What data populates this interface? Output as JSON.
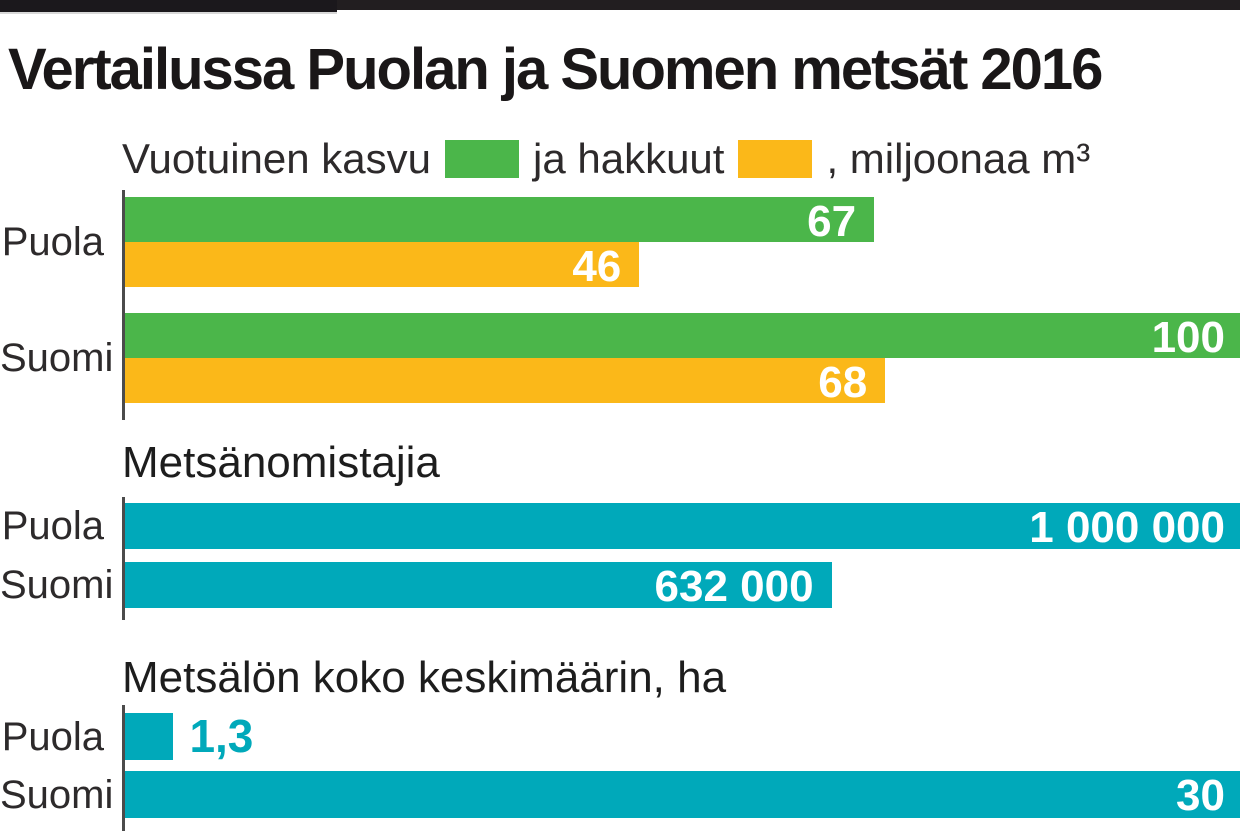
{
  "header": {
    "title": "Vertailussa Puolan ja Suomen metsät 2016"
  },
  "legend": {
    "growth_label": "Vuotuinen kasvu",
    "cut_label": "ja hakkuut",
    "unit_suffix": ", miljoonaa m³"
  },
  "colors": {
    "green": "#4bb64a",
    "yellow": "#fbb819",
    "teal": "#00a9ba",
    "topbar_left": "#1b181c",
    "topbar_right": "#221e20",
    "axis": "#4b4b4b",
    "bar_value_text": "#ffffff",
    "title_text": "#1a1718"
  },
  "chart_data": [
    {
      "type": "bar",
      "title": "Vuotuinen kasvu ja hakkuut, miljoonaa m³",
      "categories": [
        "Puola",
        "Suomi"
      ],
      "xmax": 100,
      "legend_position": "top",
      "series": [
        {
          "name": "Vuotuinen kasvu",
          "color": "#4bb64a",
          "values": [
            67,
            100
          ],
          "labels": [
            "67",
            "100"
          ]
        },
        {
          "name": "hakkuut",
          "color": "#fbb819",
          "values": [
            46,
            68
          ],
          "labels": [
            "46",
            "68"
          ]
        }
      ]
    },
    {
      "type": "bar",
      "title": "Metsänomistajia",
      "categories": [
        "Puola",
        "Suomi"
      ],
      "xmax": 1000000,
      "series": [
        {
          "name": "Metsänomistajia",
          "color": "#00a9ba",
          "values": [
            1000000,
            632000
          ],
          "labels": [
            "1 000 000",
            "632 000"
          ]
        }
      ]
    },
    {
      "type": "bar",
      "title": "Metsälön koko keskimäärin, ha",
      "categories": [
        "Puola",
        "Suomi"
      ],
      "xmax": 30,
      "series": [
        {
          "name": "Metsälön koko keskimäärin",
          "color": "#00a9ba",
          "values": [
            1.3,
            30
          ],
          "labels": [
            "1,3",
            "30"
          ]
        }
      ]
    }
  ]
}
